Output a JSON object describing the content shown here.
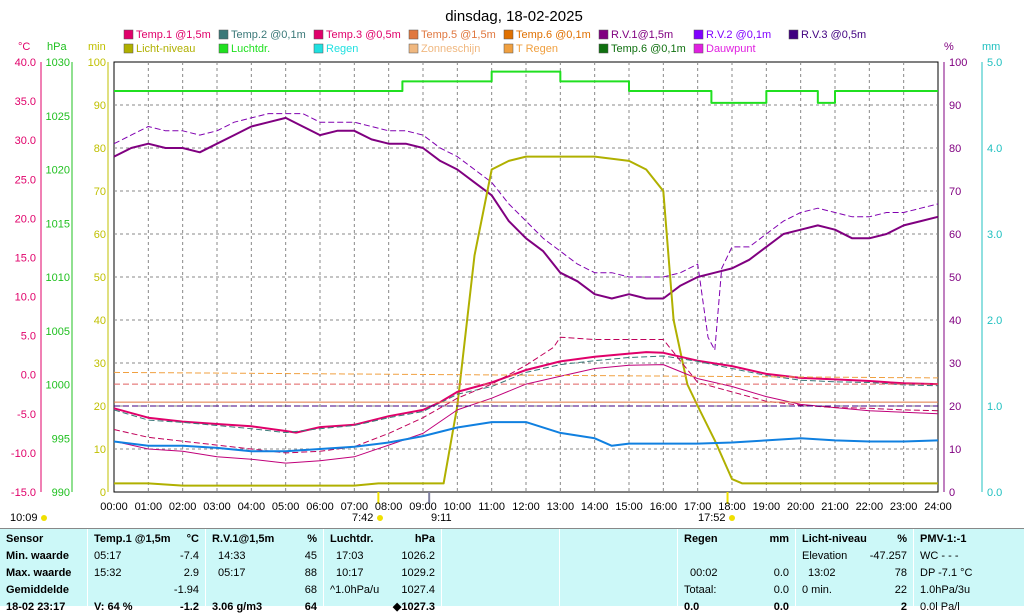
{
  "title": "dinsdag, 18-02-2025",
  "axis_units": {
    "temp": "°C",
    "pressure": "hPa",
    "minutes": "min",
    "percent": "%",
    "rain": "mm"
  },
  "axes": {
    "temp_ticks": [
      "40.0",
      "35.0",
      "30.0",
      "25.0",
      "20.0",
      "15.0",
      "10.0",
      "5.0",
      "0.0",
      "-5.0",
      "-10.0",
      "-15.0"
    ],
    "pressure_ticks": [
      "1030",
      "1025",
      "1020",
      "1015",
      "1010",
      "1005",
      "1000",
      "995",
      "990"
    ],
    "minute_ticks": [
      "100",
      "90",
      "80",
      "70",
      "60",
      "50",
      "40",
      "30",
      "20",
      "10",
      "0"
    ],
    "percent_ticks": [
      "100",
      "90",
      "80",
      "70",
      "60",
      "50",
      "40",
      "30",
      "20",
      "10",
      "0"
    ],
    "rain_ticks": [
      "5.0",
      "4.0",
      "3.0",
      "2.0",
      "1.0",
      "0.0"
    ],
    "hour_ticks": [
      "00:00",
      "01:00",
      "02:00",
      "03:00",
      "04:00",
      "05:00",
      "06:00",
      "07:00",
      "08:00",
      "09:00",
      "10:00",
      "11:00",
      "12:00",
      "13:00",
      "14:00",
      "15:00",
      "16:00",
      "17:00",
      "18:00",
      "19:00",
      "20:00",
      "21:00",
      "22:00",
      "23:00",
      "24:00"
    ]
  },
  "legend": [
    {
      "label": "Temp.1 @1,5m",
      "color": "#e0006a"
    },
    {
      "label": "Temp.2 @0,1m",
      "color": "#3a7878"
    },
    {
      "label": "Temp.3 @0,5m",
      "color": "#e0006a"
    },
    {
      "label": "Temp.5 @1,5m",
      "color": "#e07840"
    },
    {
      "label": "Temp.6 @0,1m",
      "color": "#e07000"
    },
    {
      "label": "R.V.1@1,5m",
      "color": "#800080"
    },
    {
      "label": "R.V.2 @0,1m",
      "color": "#8000ff"
    },
    {
      "label": "R.V.3 @0,5m",
      "color": "#400080"
    },
    {
      "label": "Licht-niveau",
      "color": "#b0b000"
    },
    {
      "label": "Luchtdr.",
      "color": "#20e020"
    },
    {
      "label": "Regen",
      "color": "#20e0e0"
    },
    {
      "label": "Zonneschijn",
      "color": "#f0b880"
    },
    {
      "label": "T Regen",
      "color": "#f0a040"
    },
    {
      "label": "Temp.6 @0,1m",
      "color": "#107010"
    },
    {
      "label": "Dauwpunt",
      "color": "#e020e0"
    }
  ],
  "markers": {
    "left_time": "10:09",
    "sunrise": "7:42",
    "solar_noon": "9:11",
    "sunset": "17:52"
  },
  "chart_data": {
    "type": "line",
    "x_unit": "hour",
    "xlim": [
      0,
      24
    ],
    "temp_ylim": [
      -15,
      40
    ],
    "pressure_ylim": [
      990,
      1030
    ],
    "percent_ylim": [
      0,
      100
    ],
    "rain_ylim": [
      0,
      5
    ],
    "series": [
      {
        "name": "R.V.1@1,5m",
        "axis": "percent",
        "color": "#800080",
        "style": "solid",
        "width": 2,
        "x": [
          0,
          0.5,
          1,
          1.5,
          2,
          2.5,
          3,
          3.5,
          4,
          4.5,
          5,
          5.5,
          6,
          6.5,
          7,
          7.5,
          8,
          8.5,
          9,
          9.5,
          10,
          10.5,
          11,
          11.5,
          12,
          12.5,
          13,
          13.5,
          14,
          14.5,
          15,
          15.5,
          16,
          16.5,
          17,
          17.5,
          18,
          18.5,
          19,
          19.5,
          20,
          20.5,
          21,
          21.5,
          22,
          22.5,
          23,
          23.5,
          24
        ],
        "y": [
          78,
          80,
          81,
          80,
          80,
          79,
          81,
          83,
          85,
          86,
          87,
          85,
          83,
          84,
          84,
          82,
          81,
          81,
          80,
          77,
          75,
          72,
          69,
          63,
          59,
          56,
          51,
          49,
          46,
          45,
          46,
          45,
          45,
          48,
          50,
          51,
          52,
          54,
          57,
          60,
          61,
          62,
          61,
          59,
          59,
          60,
          62,
          63,
          64
        ]
      },
      {
        "name": "R.V.3 @0,5m",
        "axis": "percent",
        "color": "#8000b0",
        "style": "dashed",
        "width": 1,
        "x": [
          0,
          0.5,
          1,
          1.5,
          2,
          2.5,
          3,
          3.5,
          4,
          4.5,
          5,
          5.5,
          6,
          6.5,
          7,
          7.5,
          8,
          8.5,
          9,
          9.5,
          10,
          10.5,
          11,
          11.5,
          12,
          12.5,
          13,
          13.5,
          14,
          14.5,
          15,
          15.5,
          16,
          16.5,
          17,
          17.3,
          17.5,
          17.7,
          18,
          18.5,
          19,
          19.5,
          20,
          20.5,
          21,
          21.5,
          22,
          22.5,
          23,
          23.5,
          24
        ],
        "y": [
          81,
          83,
          85,
          84,
          84,
          83,
          84,
          86,
          87,
          88,
          88,
          88,
          86,
          86,
          86,
          85,
          84,
          84,
          83,
          80,
          78,
          75,
          72,
          67,
          63,
          59,
          56,
          53,
          51,
          51,
          50,
          50,
          50,
          51,
          53,
          36,
          33,
          52,
          57,
          57,
          60,
          63,
          65,
          66,
          65,
          64,
          64,
          65,
          65,
          66,
          67
        ]
      },
      {
        "name": "Licht-niveau",
        "axis": "percent",
        "color": "#b0b000",
        "style": "solid",
        "width": 2,
        "x": [
          0,
          1,
          2,
          3,
          4,
          5,
          6,
          7,
          7.7,
          8,
          9,
          9.6,
          10,
          10.5,
          11,
          11.5,
          12,
          13,
          14,
          15,
          15.5,
          16,
          16.3,
          16.7,
          17,
          17.5,
          18,
          18.3,
          19,
          20,
          21,
          22,
          23,
          24
        ],
        "y": [
          2,
          2,
          1.5,
          1.5,
          1.5,
          1.5,
          1.5,
          1.5,
          2,
          2,
          2,
          2,
          20,
          55,
          75,
          77,
          78,
          78,
          78,
          77,
          75,
          70,
          40,
          25,
          20,
          12,
          3,
          2,
          2,
          2,
          2,
          2,
          2,
          2
        ]
      },
      {
        "name": "Luchtdr.",
        "axis": "pressure",
        "color": "#20e020",
        "style": "step",
        "width": 2,
        "x": [
          0,
          1,
          2,
          3,
          4,
          5,
          6,
          7,
          8,
          8.4,
          9,
          10,
          11,
          12,
          13,
          14,
          15,
          16,
          17,
          17.4,
          18,
          18.5,
          19,
          20,
          20.5,
          21,
          22,
          23,
          24
        ],
        "y": [
          1027.3,
          1027.3,
          1027.3,
          1027.3,
          1027.3,
          1027.3,
          1027.3,
          1027.3,
          1027.3,
          1028.2,
          1028.2,
          1028.2,
          1029.1,
          1029.1,
          1028.2,
          1028.2,
          1027.3,
          1027.3,
          1027.3,
          1026.2,
          1026.2,
          1026.2,
          1027.3,
          1027.3,
          1026.2,
          1027.3,
          1027.3,
          1027.3,
          1027.3
        ]
      },
      {
        "name": "Temp.1 @1,5m",
        "axis": "temp",
        "color": "#e0006a",
        "style": "solid",
        "width": 2,
        "x": [
          0,
          1,
          2,
          3,
          4,
          5,
          5.3,
          6,
          7,
          8,
          9,
          9.5,
          10,
          11,
          12,
          13,
          14,
          15,
          15.5,
          16,
          17,
          18,
          19,
          20,
          21,
          22,
          23,
          24
        ],
        "y": [
          -4.3,
          -5.5,
          -6,
          -6.3,
          -6.6,
          -7.2,
          -7.4,
          -6.7,
          -6.4,
          -5.3,
          -4.5,
          -3.5,
          -2.2,
          -1,
          0.6,
          1.7,
          2.3,
          2.7,
          2.9,
          2.8,
          1.8,
          1.1,
          0.1,
          -0.4,
          -0.6,
          -0.8,
          -1.1,
          -1.2
        ]
      },
      {
        "name": "Temp.3 @0,5m",
        "axis": "temp",
        "color": "#3a7878",
        "style": "dashed",
        "width": 1,
        "x": [
          0,
          1,
          2,
          3,
          4,
          5,
          6,
          7,
          8,
          9,
          10,
          11,
          12,
          13,
          14,
          15,
          16,
          17,
          18,
          19,
          20,
          21,
          22,
          23,
          24
        ],
        "y": [
          -4.5,
          -5.8,
          -6.1,
          -6.5,
          -6.9,
          -7.4,
          -6.9,
          -6.5,
          -5.5,
          -4.7,
          -2.5,
          -1.5,
          0.3,
          1.3,
          1.8,
          2.2,
          2.4,
          1.7,
          0.8,
          -0.1,
          -0.7,
          -0.9,
          -1.0,
          -1.3,
          -1.4
        ]
      },
      {
        "name": "Dauwpunt",
        "axis": "temp",
        "color": "#c0007a",
        "style": "solid",
        "width": 1,
        "x": [
          0,
          1,
          2,
          3,
          4,
          5,
          6,
          7,
          8,
          9,
          10,
          11,
          12,
          13,
          14,
          15,
          16,
          17,
          18,
          19,
          20,
          21,
          22,
          23,
          24
        ],
        "y": [
          -8.5,
          -9.5,
          -9.8,
          -10.5,
          -10.8,
          -11.3,
          -11,
          -10.5,
          -9,
          -7.5,
          -4.5,
          -3,
          -1.2,
          -0.2,
          0.8,
          1.2,
          1.3,
          -0.5,
          -1.5,
          -2.8,
          -3.8,
          -4.2,
          -4.6,
          -4.8,
          -5.0
        ]
      },
      {
        "name": "Temp.6 @0,1m",
        "axis": "temp",
        "color": "#c0005a",
        "style": "dashed",
        "width": 1,
        "x": [
          0,
          1,
          2,
          3,
          4,
          5,
          6,
          7,
          8,
          9,
          10,
          11,
          12,
          12.8,
          13,
          14,
          15,
          16,
          17,
          18,
          19,
          20,
          21,
          22,
          23,
          24
        ],
        "y": [
          -7,
          -8,
          -8.5,
          -9,
          -9.5,
          -10,
          -9.8,
          -9.2,
          -7.5,
          -5.5,
          -3,
          -1.2,
          1.2,
          3.5,
          4.8,
          4.5,
          4.5,
          4.5,
          -1,
          -2.2,
          -3.4,
          -3.9,
          -4.2,
          -4.3,
          -4.5,
          -4.6
        ]
      },
      {
        "name": "Temp.5 @1,5m",
        "axis": "temp",
        "color": "#e07840",
        "style": "solid",
        "width": 1,
        "x": [
          0,
          24
        ],
        "y": [
          -3.5,
          -3.5
        ]
      },
      {
        "name": "T Regen",
        "axis": "temp",
        "color": "#f0a040",
        "style": "dashed",
        "width": 1,
        "x": [
          0,
          24
        ],
        "y": [
          0.3,
          -0.4
        ]
      },
      {
        "name": "Zonneschijn",
        "axis": "temp",
        "color": "#e06060",
        "style": "dashed",
        "width": 1,
        "x": [
          0,
          24
        ],
        "y": [
          -1.2,
          -1.2
        ]
      },
      {
        "name": "R.V.2 @0,1m",
        "axis": "temp",
        "color": "#400080",
        "style": "dashed",
        "width": 1,
        "x": [
          0,
          24
        ],
        "y": [
          -4.0,
          -4.0
        ]
      },
      {
        "name": "Blue",
        "axis": "pressure",
        "color": "#1080e0",
        "style": "solid",
        "width": 2,
        "x": [
          0,
          1,
          2,
          3,
          4,
          5,
          6,
          7,
          8,
          9,
          10,
          11,
          12,
          13,
          14,
          14.5,
          15,
          16,
          17,
          18,
          19,
          20,
          21,
          22,
          23,
          24
        ],
        "y": [
          994.7,
          994.3,
          994.3,
          994.1,
          993.8,
          993.8,
          994.0,
          994.2,
          994.6,
          995.2,
          996.0,
          996.5,
          996.5,
          995.5,
          995.0,
          994.3,
          994.5,
          994.5,
          994.5,
          994.6,
          994.8,
          995.0,
          994.8,
          994.7,
          994.7,
          994.8
        ]
      }
    ]
  },
  "stats": {
    "sensor": {
      "header": "Sensor",
      "rows": [
        "Min. waarde",
        "Max. waarde",
        "Gemiddelde",
        "18-02 23:17"
      ]
    },
    "temp1": {
      "header": "Temp.1 @1,5m",
      "unit": "°C",
      "rows": [
        {
          "t": "05:17",
          "v": "-7.4"
        },
        {
          "t": "15:32",
          "v": "2.9"
        },
        {
          "t": "",
          "v": "-1.94"
        },
        {
          "t": "V: 64 %",
          "v": "-1.2"
        }
      ]
    },
    "rv1": {
      "header": "R.V.1@1,5m",
      "unit": "%",
      "rows": [
        {
          "t": "14:33",
          "v": "45"
        },
        {
          "t": "05:17",
          "v": "88"
        },
        {
          "t": "",
          "v": "68"
        },
        {
          "t": "3.06 g/m3",
          "v": "64"
        }
      ]
    },
    "luchtdr": {
      "header": "Luchtdr.",
      "unit": "hPa",
      "rows": [
        {
          "t": "17:03",
          "v": "1026.2"
        },
        {
          "t": "10:17",
          "v": "1029.2"
        },
        {
          "t": "^1.0hPa/u",
          "v": "1027.4"
        },
        {
          "t": "",
          "v": "◆1027.3"
        }
      ]
    },
    "regen": {
      "header": "Regen",
      "unit": "mm",
      "rows": [
        {
          "t": "",
          "v": ""
        },
        {
          "t": "00:02",
          "v": "0.0"
        },
        {
          "t": "Totaal:",
          "v": "0.0"
        },
        {
          "t": "0.0",
          "v": "0.0"
        }
      ]
    },
    "licht": {
      "header": "Licht-niveau",
      "unit": "%",
      "rows": [
        {
          "t": "Elevation",
          "v": "-47.257"
        },
        {
          "t": "13:02",
          "v": "78"
        },
        {
          "t": "0 min.",
          "v": "22"
        },
        {
          "t": "",
          "v": "2"
        }
      ]
    },
    "pmv": {
      "header": "PMV-1:-1",
      "rows": [
        "WC - - -",
        "DP -7.1 °C",
        "1.0hPa/3u",
        "0.0l Pa/l"
      ]
    }
  }
}
